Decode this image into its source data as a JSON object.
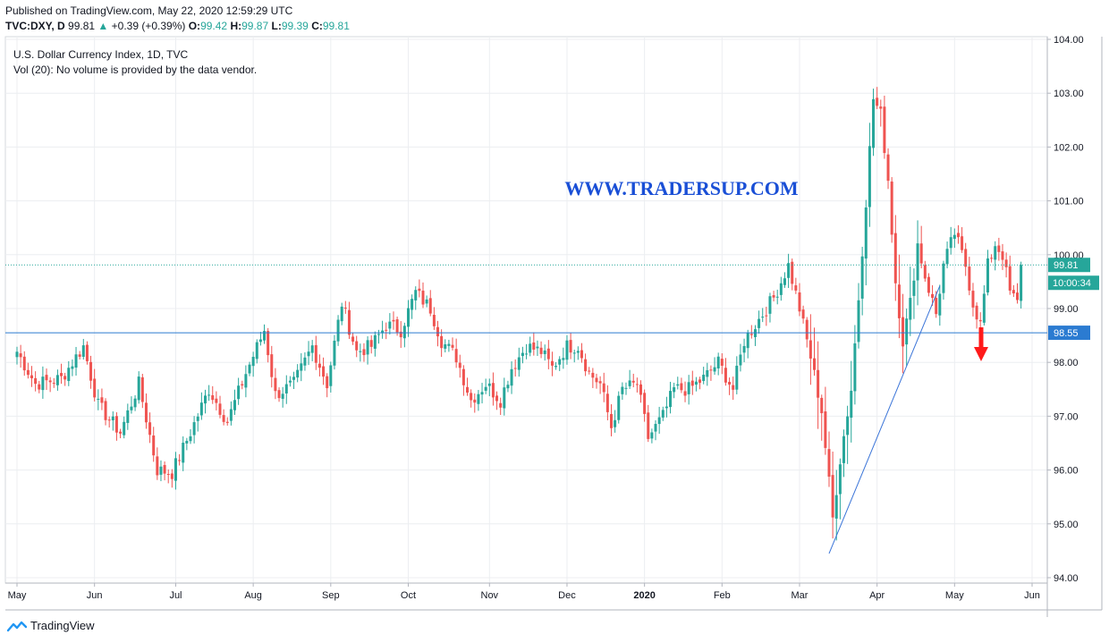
{
  "header": {
    "published": "Published on TradingView.com, May 22, 2020 12:59:29 UTC",
    "symbol": "TVC:DXY, D",
    "last": "99.81",
    "change_arrow": "▲",
    "change": "+0.39 (+0.39%)",
    "o_label": "O:",
    "o": "99.42",
    "h_label": "H:",
    "h": "99.87",
    "l_label": "L:",
    "l": "99.39",
    "c_label": "C:",
    "c": "99.81"
  },
  "legend": {
    "line1": "U.S. Dollar Currency Index, 1D, TVC",
    "line2": "Vol (20): No volume is provided by the data vendor."
  },
  "watermark": "WWW.TRADERSUP.COM",
  "price_tags": {
    "last": "99.81",
    "countdown": "10:00:34",
    "support": "98.55"
  },
  "footer": {
    "brand": "TradingView"
  },
  "colors": {
    "up": "#26a69a",
    "down": "#ef5350",
    "line": "#2962ff",
    "watermark": "#1a4fd6",
    "arrow": "#ff1a1a"
  },
  "chart_data": {
    "type": "candlestick",
    "title": "U.S. Dollar Currency Index, 1D, TVC",
    "ylim": [
      93.9,
      104.05
    ],
    "y_ticks": [
      "104.00",
      "103.00",
      "102.00",
      "101.00",
      "100.00",
      "99.00",
      "98.00",
      "97.00",
      "96.00",
      "95.00",
      "94.00"
    ],
    "x_ticks": [
      "May",
      "Jun",
      "Jul",
      "Aug",
      "Sep",
      "Oct",
      "Nov",
      "Dec",
      "2020",
      "Feb",
      "Mar",
      "Apr",
      "May",
      "Jun"
    ],
    "x_tick_index": [
      0,
      21,
      43,
      64,
      85,
      106,
      128,
      149,
      170,
      191,
      212,
      233,
      254,
      275
    ],
    "grid": true,
    "horizontal_lines": [
      99.81,
      98.55
    ],
    "trendlines": [
      {
        "from": [
          220,
          94.45
        ],
        "to": [
          250,
          99.42
        ]
      }
    ],
    "anchors": [
      [
        0,
        98.2
      ],
      [
        5,
        97.6
      ],
      [
        12,
        97.7
      ],
      [
        18,
        98.3
      ],
      [
        22,
        97.2
      ],
      [
        28,
        96.7
      ],
      [
        33,
        97.6
      ],
      [
        38,
        96.0
      ],
      [
        42,
        95.95
      ],
      [
        47,
        96.7
      ],
      [
        52,
        97.5
      ],
      [
        57,
        96.9
      ],
      [
        62,
        97.8
      ],
      [
        67,
        98.6
      ],
      [
        70,
        97.4
      ],
      [
        75,
        97.6
      ],
      [
        80,
        98.3
      ],
      [
        84,
        97.6
      ],
      [
        88,
        99.1
      ],
      [
        92,
        98.2
      ],
      [
        96,
        98.3
      ],
      [
        100,
        98.7
      ],
      [
        104,
        98.6
      ],
      [
        108,
        99.3
      ],
      [
        112,
        99.0
      ],
      [
        115,
        98.4
      ],
      [
        119,
        98.1
      ],
      [
        123,
        97.3
      ],
      [
        127,
        97.6
      ],
      [
        131,
        97.3
      ],
      [
        134,
        97.9
      ],
      [
        138,
        98.3
      ],
      [
        142,
        98.2
      ],
      [
        145,
        97.9
      ],
      [
        149,
        98.3
      ],
      [
        152,
        98.3
      ],
      [
        155,
        97.8
      ],
      [
        158,
        97.6
      ],
      [
        161,
        96.8
      ],
      [
        164,
        97.5
      ],
      [
        168,
        97.6
      ],
      [
        171,
        96.6
      ],
      [
        175,
        97.0
      ],
      [
        178,
        97.5
      ],
      [
        182,
        97.5
      ],
      [
        186,
        97.7
      ],
      [
        190,
        98.0
      ],
      [
        194,
        97.5
      ],
      [
        197,
        98.4
      ],
      [
        201,
        98.8
      ],
      [
        205,
        99.2
      ],
      [
        209,
        99.8
      ],
      [
        212,
        99.0
      ],
      [
        215,
        98.1
      ],
      [
        218,
        97.1
      ],
      [
        221,
        95.1
      ],
      [
        223,
        96.2
      ],
      [
        226,
        97.5
      ],
      [
        228,
        99.2
      ],
      [
        230,
        101.0
      ],
      [
        232,
        102.9
      ],
      [
        234,
        102.6
      ],
      [
        236,
        101.4
      ],
      [
        238,
        99.5
      ],
      [
        240,
        98.4
      ],
      [
        242,
        99.1
      ],
      [
        244,
        100.2
      ],
      [
        246,
        99.6
      ],
      [
        249,
        98.9
      ],
      [
        251,
        99.8
      ],
      [
        254,
        100.4
      ],
      [
        257,
        99.8
      ],
      [
        259,
        99.1
      ],
      [
        261,
        98.7
      ],
      [
        263,
        99.8
      ],
      [
        265,
        100.2
      ],
      [
        267,
        100.0
      ],
      [
        269,
        99.3
      ],
      [
        271,
        99.1
      ],
      [
        272,
        99.81
      ]
    ]
  }
}
